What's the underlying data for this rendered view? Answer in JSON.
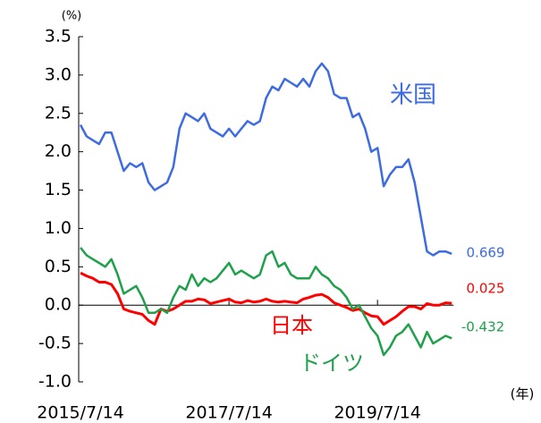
{
  "chart_data": {
    "type": "line",
    "y_unit": "(%)",
    "x_unit": "(年)",
    "categories": [
      "2015/7/14",
      null,
      null,
      null,
      null,
      null,
      null,
      null,
      null,
      null,
      null,
      null,
      null,
      null,
      null,
      null,
      null,
      null,
      null,
      null,
      null,
      null,
      null,
      null,
      "2017/7/14",
      null,
      null,
      null,
      null,
      null,
      null,
      null,
      null,
      null,
      null,
      null,
      null,
      null,
      null,
      null,
      null,
      null,
      null,
      null,
      null,
      null,
      null,
      null,
      "2019/7/14",
      null,
      null,
      null,
      null,
      null,
      null,
      null,
      null,
      null,
      null,
      null,
      null
    ],
    "series": [
      {
        "name": "米国",
        "color": "#3d6be0",
        "end_label": "0.669",
        "values": [
          2.35,
          2.2,
          2.15,
          2.1,
          2.25,
          2.25,
          2.0,
          1.75,
          1.85,
          1.8,
          1.85,
          1.6,
          1.5,
          1.55,
          1.6,
          1.8,
          2.3,
          2.5,
          2.45,
          2.4,
          2.5,
          2.3,
          2.25,
          2.2,
          2.3,
          2.2,
          2.3,
          2.4,
          2.35,
          2.4,
          2.7,
          2.85,
          2.8,
          2.95,
          2.9,
          2.85,
          2.95,
          2.85,
          3.05,
          3.15,
          3.05,
          2.75,
          2.7,
          2.7,
          2.45,
          2.5,
          2.3,
          2.0,
          2.05,
          1.55,
          1.7,
          1.8,
          1.8,
          1.9,
          1.6,
          1.15,
          0.7,
          0.65,
          0.7,
          0.7,
          0.669
        ]
      },
      {
        "name": "日本",
        "color": "#ff0000",
        "end_label": "0.025",
        "values": [
          0.42,
          0.38,
          0.35,
          0.3,
          0.3,
          0.27,
          0.15,
          -0.05,
          -0.08,
          -0.1,
          -0.12,
          -0.2,
          -0.25,
          -0.05,
          -0.08,
          -0.05,
          0.0,
          0.05,
          0.05,
          0.08,
          0.07,
          0.02,
          0.04,
          0.06,
          0.08,
          0.04,
          0.03,
          0.06,
          0.04,
          0.05,
          0.08,
          0.05,
          0.04,
          0.05,
          0.04,
          0.03,
          0.08,
          0.1,
          0.13,
          0.14,
          0.1,
          0.03,
          0.0,
          -0.03,
          -0.07,
          -0.05,
          -0.1,
          -0.14,
          -0.15,
          -0.25,
          -0.2,
          -0.15,
          -0.08,
          -0.02,
          -0.02,
          -0.05,
          0.02,
          0.0,
          0.0,
          0.03,
          0.025
        ]
      },
      {
        "name": "ドイツ",
        "color": "#1fa04a",
        "end_label": "-0.432",
        "values": [
          0.75,
          0.65,
          0.6,
          0.55,
          0.5,
          0.6,
          0.4,
          0.15,
          0.2,
          0.25,
          0.1,
          -0.1,
          -0.1,
          -0.05,
          -0.1,
          0.1,
          0.25,
          0.2,
          0.4,
          0.25,
          0.35,
          0.3,
          0.35,
          0.45,
          0.55,
          0.4,
          0.45,
          0.4,
          0.35,
          0.4,
          0.65,
          0.7,
          0.5,
          0.55,
          0.4,
          0.35,
          0.35,
          0.35,
          0.5,
          0.4,
          0.35,
          0.25,
          0.2,
          0.1,
          -0.05,
          0.0,
          -0.15,
          -0.3,
          -0.4,
          -0.65,
          -0.55,
          -0.4,
          -0.35,
          -0.25,
          -0.4,
          -0.55,
          -0.35,
          -0.5,
          -0.45,
          -0.4,
          -0.432
        ]
      }
    ],
    "ylim": [
      -1.0,
      3.5
    ],
    "yticks": [
      {
        "value": -1.0,
        "label": "-1.0"
      },
      -0.5,
      {
        "value": 0.0,
        "label": "0.0"
      },
      0.5,
      {
        "value": 1.0,
        "label": "1.0"
      },
      1.5,
      {
        "value": 2.0,
        "label": "2.0"
      },
      2.5,
      {
        "value": 3.0,
        "label": "3.0"
      },
      {
        "value": 3.5,
        "label": "3.5"
      }
    ]
  }
}
